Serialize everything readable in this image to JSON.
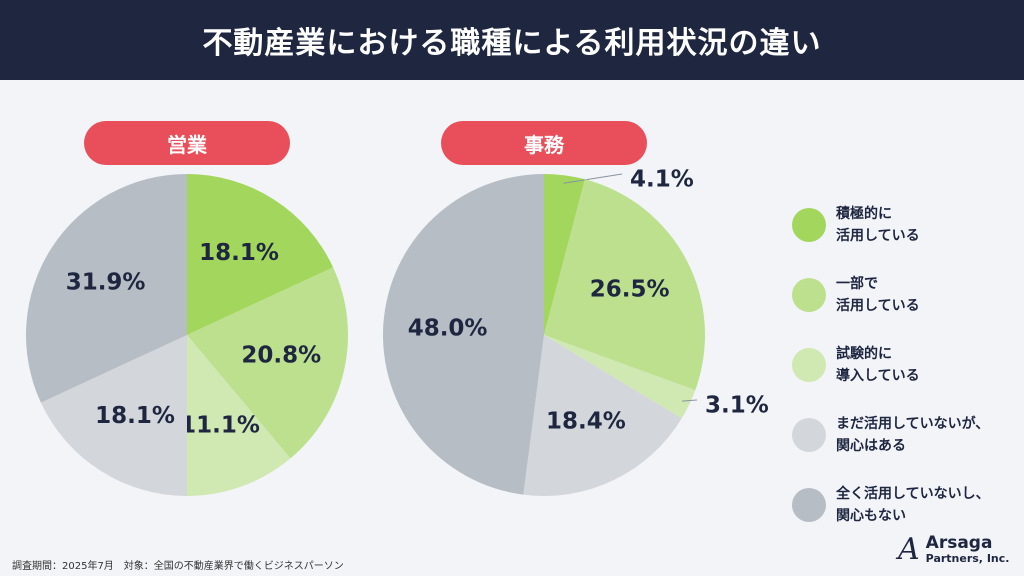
{
  "title": "不動産業における職種による利用状況の違い",
  "colors": {
    "header": "#1e2640",
    "pill": "#e94f5a"
  },
  "chart_data": [
    {
      "type": "pie",
      "title": "営業",
      "categories": [
        "積極的に活用している",
        "一部で活用している",
        "試験的に導入している",
        "まだ活用していないが、関心はある",
        "全く活用していないし、関心もない"
      ],
      "values": [
        18.1,
        20.8,
        11.1,
        18.1,
        31.9
      ],
      "labels": [
        "18.1%",
        "20.8%",
        "11.1%",
        "18.1%",
        "31.9%"
      ]
    },
    {
      "type": "pie",
      "title": "事務",
      "categories": [
        "積極的に活用している",
        "一部で活用している",
        "試験的に導入している",
        "まだ活用していないが、関心はある",
        "全く活用していないし、関心もない"
      ],
      "values": [
        4.1,
        26.5,
        3.1,
        18.4,
        48.0
      ],
      "labels": [
        "4.1%",
        "26.5%",
        "3.1%",
        "18.4%",
        "48.0%"
      ]
    }
  ],
  "legend": [
    {
      "label": "積極的に\n活用している",
      "color": "#a3d65c"
    },
    {
      "label": "一部で\n活用している",
      "color": "#bde08f"
    },
    {
      "label": "試験的に\n導入している",
      "color": "#d0e8b2"
    },
    {
      "label": "まだ活用していないが、\n関心はある",
      "color": "#d3d6db"
    },
    {
      "label": "全く活用していないし、\n関心もない",
      "color": "#b6bdc5"
    }
  ],
  "footer": "調査期間：2025年7月　対象：全国の不動産業界で働くビジネスパーソン",
  "logo": {
    "name": "Arsaga",
    "sub": "Partners, Inc."
  }
}
